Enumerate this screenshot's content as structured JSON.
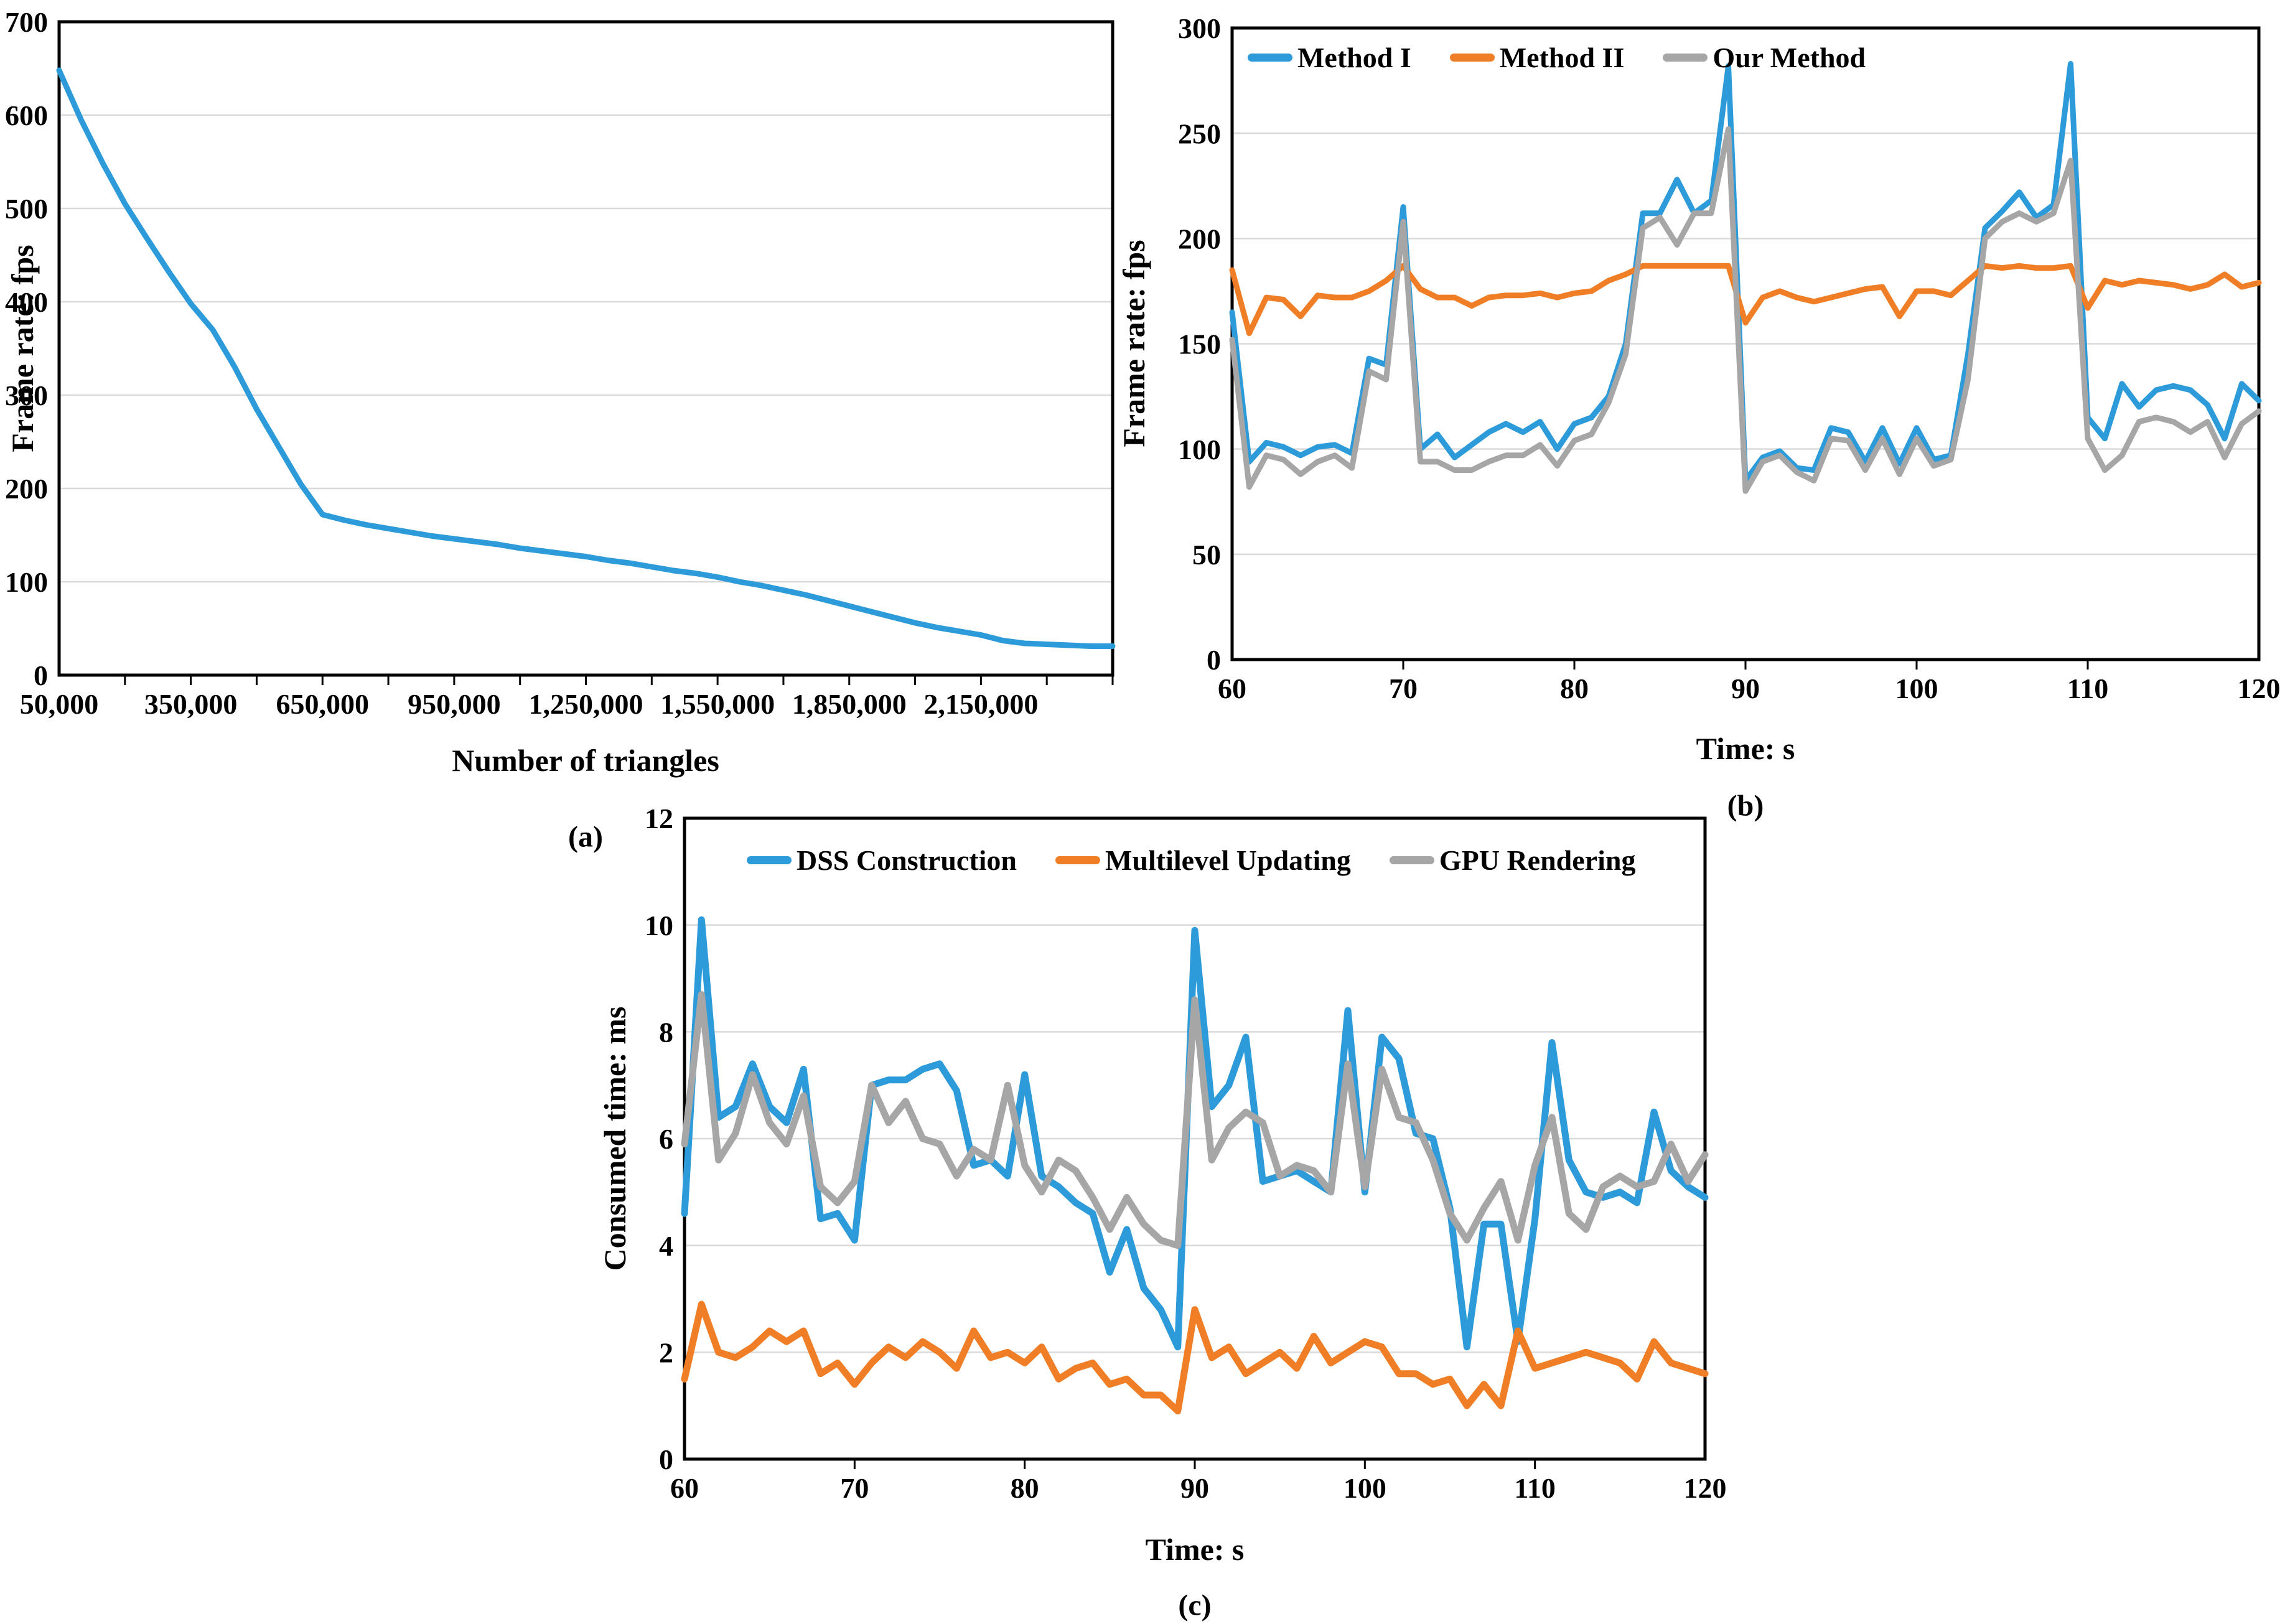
{
  "figure": {
    "background": "#ffffff",
    "panel_captions": [
      "(a)",
      "(b)",
      "(c)"
    ]
  },
  "colors": {
    "blue": "#2D9BD9",
    "orange": "#F07E26",
    "gray": "#A6A6A6",
    "grid": "#D9D9D9",
    "axis": "#000000"
  },
  "chart_data": [
    {
      "id": "a",
      "type": "line",
      "title": "",
      "xlabel": "Number of triangles",
      "ylabel": "Frame rate: fps",
      "caption": "(a)",
      "xlim": [
        50000,
        2450000
      ],
      "ylim": [
        0,
        700
      ],
      "grid": true,
      "legend_position": "none",
      "yticks": [
        0,
        100,
        200,
        300,
        400,
        500,
        600,
        700
      ],
      "xticks": [
        50000,
        350000,
        650000,
        950000,
        1250000,
        1550000,
        1850000,
        2150000
      ],
      "xtick_labels": [
        "50,000",
        "350,000",
        "650,000",
        "950,000",
        "1,250,000",
        "1,550,000",
        "1,850,000",
        "2,150,000"
      ],
      "xtick_marks": [
        200000,
        350000,
        500000,
        650000,
        800000,
        950000,
        1100000,
        1250000,
        1400000,
        1550000,
        1700000,
        1850000,
        2000000,
        2150000,
        2300000,
        2450000
      ],
      "series": [
        {
          "name": "Frame rate",
          "color": "#2D9BD9",
          "x": [
            50000,
            100000,
            150000,
            200000,
            250000,
            300000,
            350000,
            400000,
            450000,
            500000,
            550000,
            600000,
            650000,
            700000,
            750000,
            800000,
            850000,
            900000,
            950000,
            1000000,
            1050000,
            1100000,
            1150000,
            1200000,
            1250000,
            1300000,
            1350000,
            1400000,
            1450000,
            1500000,
            1550000,
            1600000,
            1650000,
            1700000,
            1750000,
            1800000,
            1850000,
            1900000,
            1950000,
            2000000,
            2050000,
            2100000,
            2150000,
            2200000,
            2250000,
            2300000,
            2350000,
            2400000,
            2450000
          ],
          "y": [
            648,
            595,
            548,
            505,
            468,
            432,
            398,
            370,
            330,
            285,
            245,
            205,
            172,
            166,
            161,
            157,
            153,
            149,
            146,
            143,
            140,
            136,
            133,
            130,
            127,
            123,
            120,
            116,
            112,
            109,
            105,
            100,
            96,
            91,
            86,
            80,
            74,
            68,
            62,
            56,
            51,
            47,
            43,
            37,
            34,
            33,
            32,
            31,
            31
          ]
        }
      ]
    },
    {
      "id": "b",
      "type": "line",
      "title": "",
      "xlabel": "Time: s",
      "ylabel": "Frame rate: fps",
      "caption": "(b)",
      "xlim": [
        60,
        120
      ],
      "ylim": [
        0,
        300
      ],
      "grid": true,
      "legend_position": "top-inside",
      "yticks": [
        0,
        50,
        100,
        150,
        200,
        250,
        300
      ],
      "xticks": [
        60,
        70,
        80,
        90,
        100,
        110,
        120
      ],
      "xtick_labels": [
        "60",
        "70",
        "80",
        "90",
        "100",
        "110",
        "120"
      ],
      "xtick_marks": [
        70,
        80,
        90,
        100,
        110
      ],
      "x0": 60,
      "dx": 1,
      "series": [
        {
          "name": "Method I",
          "color": "#2D9BD9",
          "values": [
            165,
            94,
            103,
            101,
            97,
            101,
            102,
            98,
            143,
            140,
            215,
            100,
            107,
            96,
            102,
            108,
            112,
            108,
            113,
            100,
            112,
            115,
            125,
            150,
            212,
            212,
            228,
            212,
            218,
            282,
            85,
            96,
            99,
            91,
            90,
            110,
            108,
            94,
            110,
            93,
            110,
            95,
            97,
            145,
            205,
            213,
            222,
            210,
            216,
            283,
            115,
            105,
            131,
            120,
            128,
            130,
            128,
            121,
            105,
            131,
            123
          ]
        },
        {
          "name": "Method II",
          "color": "#F07E26",
          "values": [
            185,
            155,
            172,
            171,
            163,
            173,
            172,
            172,
            175,
            180,
            187,
            176,
            172,
            172,
            168,
            172,
            173,
            173,
            174,
            172,
            174,
            175,
            180,
            183,
            187,
            187,
            187,
            187,
            187,
            187,
            160,
            172,
            175,
            172,
            170,
            172,
            174,
            176,
            177,
            163,
            175,
            175,
            173,
            180,
            187,
            186,
            187,
            186,
            186,
            187,
            167,
            180,
            178,
            180,
            179,
            178,
            176,
            178,
            183,
            177,
            179
          ]
        },
        {
          "name": "Our Method",
          "color": "#A6A6A6",
          "values": [
            152,
            82,
            97,
            95,
            88,
            94,
            97,
            91,
            137,
            133,
            208,
            94,
            94,
            90,
            90,
            94,
            97,
            97,
            102,
            92,
            104,
            107,
            122,
            145,
            205,
            210,
            197,
            212,
            212,
            252,
            80,
            94,
            97,
            89,
            85,
            105,
            104,
            90,
            105,
            88,
            105,
            92,
            95,
            133,
            200,
            208,
            212,
            208,
            212,
            237,
            105,
            90,
            97,
            113,
            115,
            113,
            108,
            113,
            96,
            112,
            118
          ]
        }
      ]
    },
    {
      "id": "c",
      "type": "line",
      "title": "",
      "xlabel": "Time: s",
      "ylabel": "Consumed time: ms",
      "caption": "(c)",
      "xlim": [
        60,
        120
      ],
      "ylim": [
        0,
        12
      ],
      "grid": true,
      "legend_position": "top-inside",
      "yticks": [
        0,
        2,
        4,
        6,
        8,
        10,
        12
      ],
      "xticks": [
        60,
        70,
        80,
        90,
        100,
        110,
        120
      ],
      "xtick_labels": [
        "60",
        "70",
        "80",
        "90",
        "100",
        "110",
        "120"
      ],
      "xtick_marks": [
        70,
        80,
        90,
        100,
        110
      ],
      "x0": 60,
      "dx": 1,
      "series": [
        {
          "name": "DSS Construction",
          "color": "#2D9BD9",
          "values": [
            4.6,
            10.1,
            6.4,
            6.6,
            7.4,
            6.6,
            6.3,
            7.3,
            4.5,
            4.6,
            4.1,
            7.0,
            7.1,
            7.1,
            7.3,
            7.4,
            6.9,
            5.5,
            5.6,
            5.3,
            7.2,
            5.3,
            5.1,
            4.8,
            4.6,
            3.5,
            4.3,
            3.2,
            2.8,
            2.1,
            9.9,
            6.6,
            7.0,
            7.9,
            5.2,
            5.3,
            5.4,
            5.2,
            5.0,
            8.4,
            5.0,
            7.9,
            7.5,
            6.1,
            6.0,
            4.7,
            2.1,
            4.4,
            4.4,
            2.2,
            4.5,
            7.8,
            5.6,
            5.0,
            4.9,
            5.0,
            4.8,
            6.5,
            5.4,
            5.1,
            4.9
          ]
        },
        {
          "name": "Multilevel Updating",
          "color": "#F07E26",
          "values": [
            1.5,
            2.9,
            2.0,
            1.9,
            2.1,
            2.4,
            2.2,
            2.4,
            1.6,
            1.8,
            1.4,
            1.8,
            2.1,
            1.9,
            2.2,
            2.0,
            1.7,
            2.4,
            1.9,
            2.0,
            1.8,
            2.1,
            1.5,
            1.7,
            1.8,
            1.4,
            1.5,
            1.2,
            1.2,
            0.9,
            2.8,
            1.9,
            2.1,
            1.6,
            1.8,
            2.0,
            1.7,
            2.3,
            1.8,
            2.0,
            2.2,
            2.1,
            1.6,
            1.6,
            1.4,
            1.5,
            1.0,
            1.4,
            1.0,
            2.4,
            1.7,
            1.8,
            1.9,
            2.0,
            1.9,
            1.8,
            1.5,
            2.2,
            1.8,
            1.7,
            1.6
          ]
        },
        {
          "name": "GPU Rendering",
          "color": "#A6A6A6",
          "values": [
            5.9,
            8.7,
            5.6,
            6.1,
            7.2,
            6.3,
            5.9,
            6.8,
            5.1,
            4.8,
            5.2,
            7.0,
            6.3,
            6.7,
            6.0,
            5.9,
            5.3,
            5.8,
            5.6,
            7.0,
            5.5,
            5.0,
            5.6,
            5.4,
            4.9,
            4.3,
            4.9,
            4.4,
            4.1,
            4.0,
            8.6,
            5.6,
            6.2,
            6.5,
            6.3,
            5.3,
            5.5,
            5.4,
            5.0,
            7.4,
            5.1,
            7.3,
            6.4,
            6.3,
            5.6,
            4.6,
            4.1,
            4.7,
            5.2,
            4.1,
            5.5,
            6.4,
            4.6,
            4.3,
            5.1,
            5.3,
            5.1,
            5.2,
            5.9,
            5.2,
            5.7
          ]
        }
      ]
    }
  ]
}
